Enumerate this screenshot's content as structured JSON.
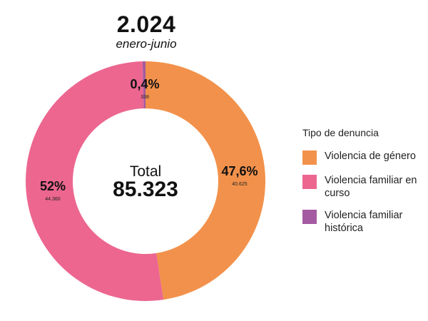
{
  "header": {
    "year": "2.024",
    "period": "enero-junio"
  },
  "chart_data": {
    "type": "pie",
    "variant": "donut",
    "center_label": "Total",
    "center_value": "85.323",
    "total": 85323,
    "slices": [
      {
        "name": "Violencia de género",
        "percent_label": "47,6%",
        "count_label": "40.625",
        "value": 40625,
        "color": "#F2914B"
      },
      {
        "name": "Violencia familiar en curso",
        "percent_label": "52%",
        "count_label": "44.360",
        "value": 44360,
        "color": "#EC6690"
      },
      {
        "name": "Violencia familiar histórica",
        "percent_label": "0,4%",
        "count_label": "338",
        "value": 338,
        "color": "#A45BA1"
      }
    ],
    "legend_title": "Tipo de denuncia"
  }
}
